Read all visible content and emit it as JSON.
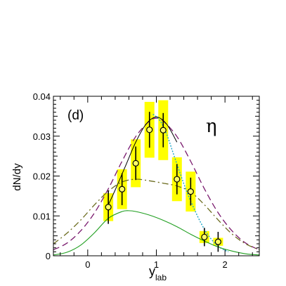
{
  "chart_data": {
    "type": "scatter",
    "panel_label": "(d)",
    "particle_label": "η",
    "ylabel": "dN/dy",
    "xlabel_main": "y",
    "xlabel_sub": "lab",
    "xlim": [
      -0.5,
      2.5
    ],
    "ylim": [
      0,
      0.04
    ],
    "x_ticks": [
      0,
      1,
      2
    ],
    "x_tick_labels": [
      "0",
      "1",
      "2"
    ],
    "y_ticks": [
      0,
      0.01,
      0.02,
      0.03,
      0.04
    ],
    "y_tick_labels": [
      "0",
      "0.01",
      "0.02",
      "0.03",
      "0.04"
    ],
    "colors": {
      "systematic_band": "#ffff00",
      "purple_dashed": "#7a1a6e",
      "olive_dashdot": "#6b6b1e",
      "cyan_dotted": "#1aa6c8",
      "green_solid": "#1f9e1f",
      "black_solid": "#000000"
    },
    "data_points": [
      {
        "x": 0.3,
        "y": 0.0122,
        "stat": 0.0042,
        "sys": 0.0035
      },
      {
        "x": 0.5,
        "y": 0.0167,
        "stat": 0.004,
        "sys": 0.005
      },
      {
        "x": 0.7,
        "y": 0.0232,
        "stat": 0.0042,
        "sys": 0.006
      },
      {
        "x": 0.9,
        "y": 0.0316,
        "stat": 0.0045,
        "sys": 0.007
      },
      {
        "x": 1.1,
        "y": 0.0315,
        "stat": 0.0043,
        "sys": 0.0075
      },
      {
        "x": 1.3,
        "y": 0.0192,
        "stat": 0.0038,
        "sys": 0.0055
      },
      {
        "x": 1.5,
        "y": 0.0161,
        "stat": 0.0035,
        "sys": 0.005
      },
      {
        "x": 1.7,
        "y": 0.0047,
        "stat": 0.0023,
        "sys": 0.0015
      },
      {
        "x": 1.9,
        "y": 0.0035,
        "stat": 0.0025,
        "sys": 0.001
      }
    ],
    "curves": [
      {
        "style": "purple_dashed",
        "x": [
          -0.5,
          -0.3,
          -0.1,
          0.1,
          0.3,
          0.5,
          0.7,
          0.9,
          1.0,
          1.1,
          1.3,
          1.5,
          1.7,
          1.9,
          2.1,
          2.3,
          2.5
        ],
        "y": [
          0.0015,
          0.0032,
          0.0063,
          0.0108,
          0.0168,
          0.0237,
          0.0299,
          0.0338,
          0.0345,
          0.0338,
          0.0299,
          0.0237,
          0.0168,
          0.0108,
          0.0063,
          0.0032,
          0.0015
        ]
      },
      {
        "style": "olive_dashdot",
        "x": [
          -0.5,
          -0.3,
          -0.1,
          0.1,
          0.3,
          0.5,
          0.7,
          0.9,
          1.1,
          1.3,
          1.5,
          1.7,
          1.9,
          2.1,
          2.3,
          2.5
        ],
        "y": [
          0.003,
          0.0057,
          0.009,
          0.0128,
          0.0162,
          0.0185,
          0.0192,
          0.0188,
          0.0182,
          0.0175,
          0.016,
          0.0128,
          0.009,
          0.0055,
          0.003,
          0.0015
        ]
      },
      {
        "style": "cyan_dotted",
        "x": [
          0.95,
          1.05,
          1.15,
          1.25,
          1.35,
          1.45,
          1.55,
          1.65,
          1.75,
          1.85,
          1.95,
          2.05
        ],
        "y": [
          0.0355,
          0.034,
          0.0305,
          0.0255,
          0.0205,
          0.0158,
          0.0118,
          0.0082,
          0.0053,
          0.0032,
          0.0018,
          0.001
        ]
      },
      {
        "style": "green_solid",
        "x": [
          -0.5,
          -0.3,
          -0.1,
          0.1,
          0.3,
          0.5,
          0.6,
          0.7,
          0.9,
          1.1,
          1.3,
          1.5,
          1.7,
          1.9,
          2.1,
          2.3,
          2.5
        ],
        "y": [
          0.0002,
          0.0009,
          0.0027,
          0.0058,
          0.0094,
          0.0111,
          0.0113,
          0.0111,
          0.0102,
          0.0089,
          0.0073,
          0.0054,
          0.0037,
          0.0022,
          0.0012,
          0.0005,
          0.0002
        ]
      },
      {
        "style": "black_solid",
        "x": [
          0.28,
          0.4,
          0.55,
          0.7,
          0.85,
          1.0,
          1.15,
          1.3
        ],
        "y": [
          0.012,
          0.0165,
          0.0225,
          0.0285,
          0.033,
          0.0348,
          0.033,
          0.0285
        ]
      }
    ]
  }
}
